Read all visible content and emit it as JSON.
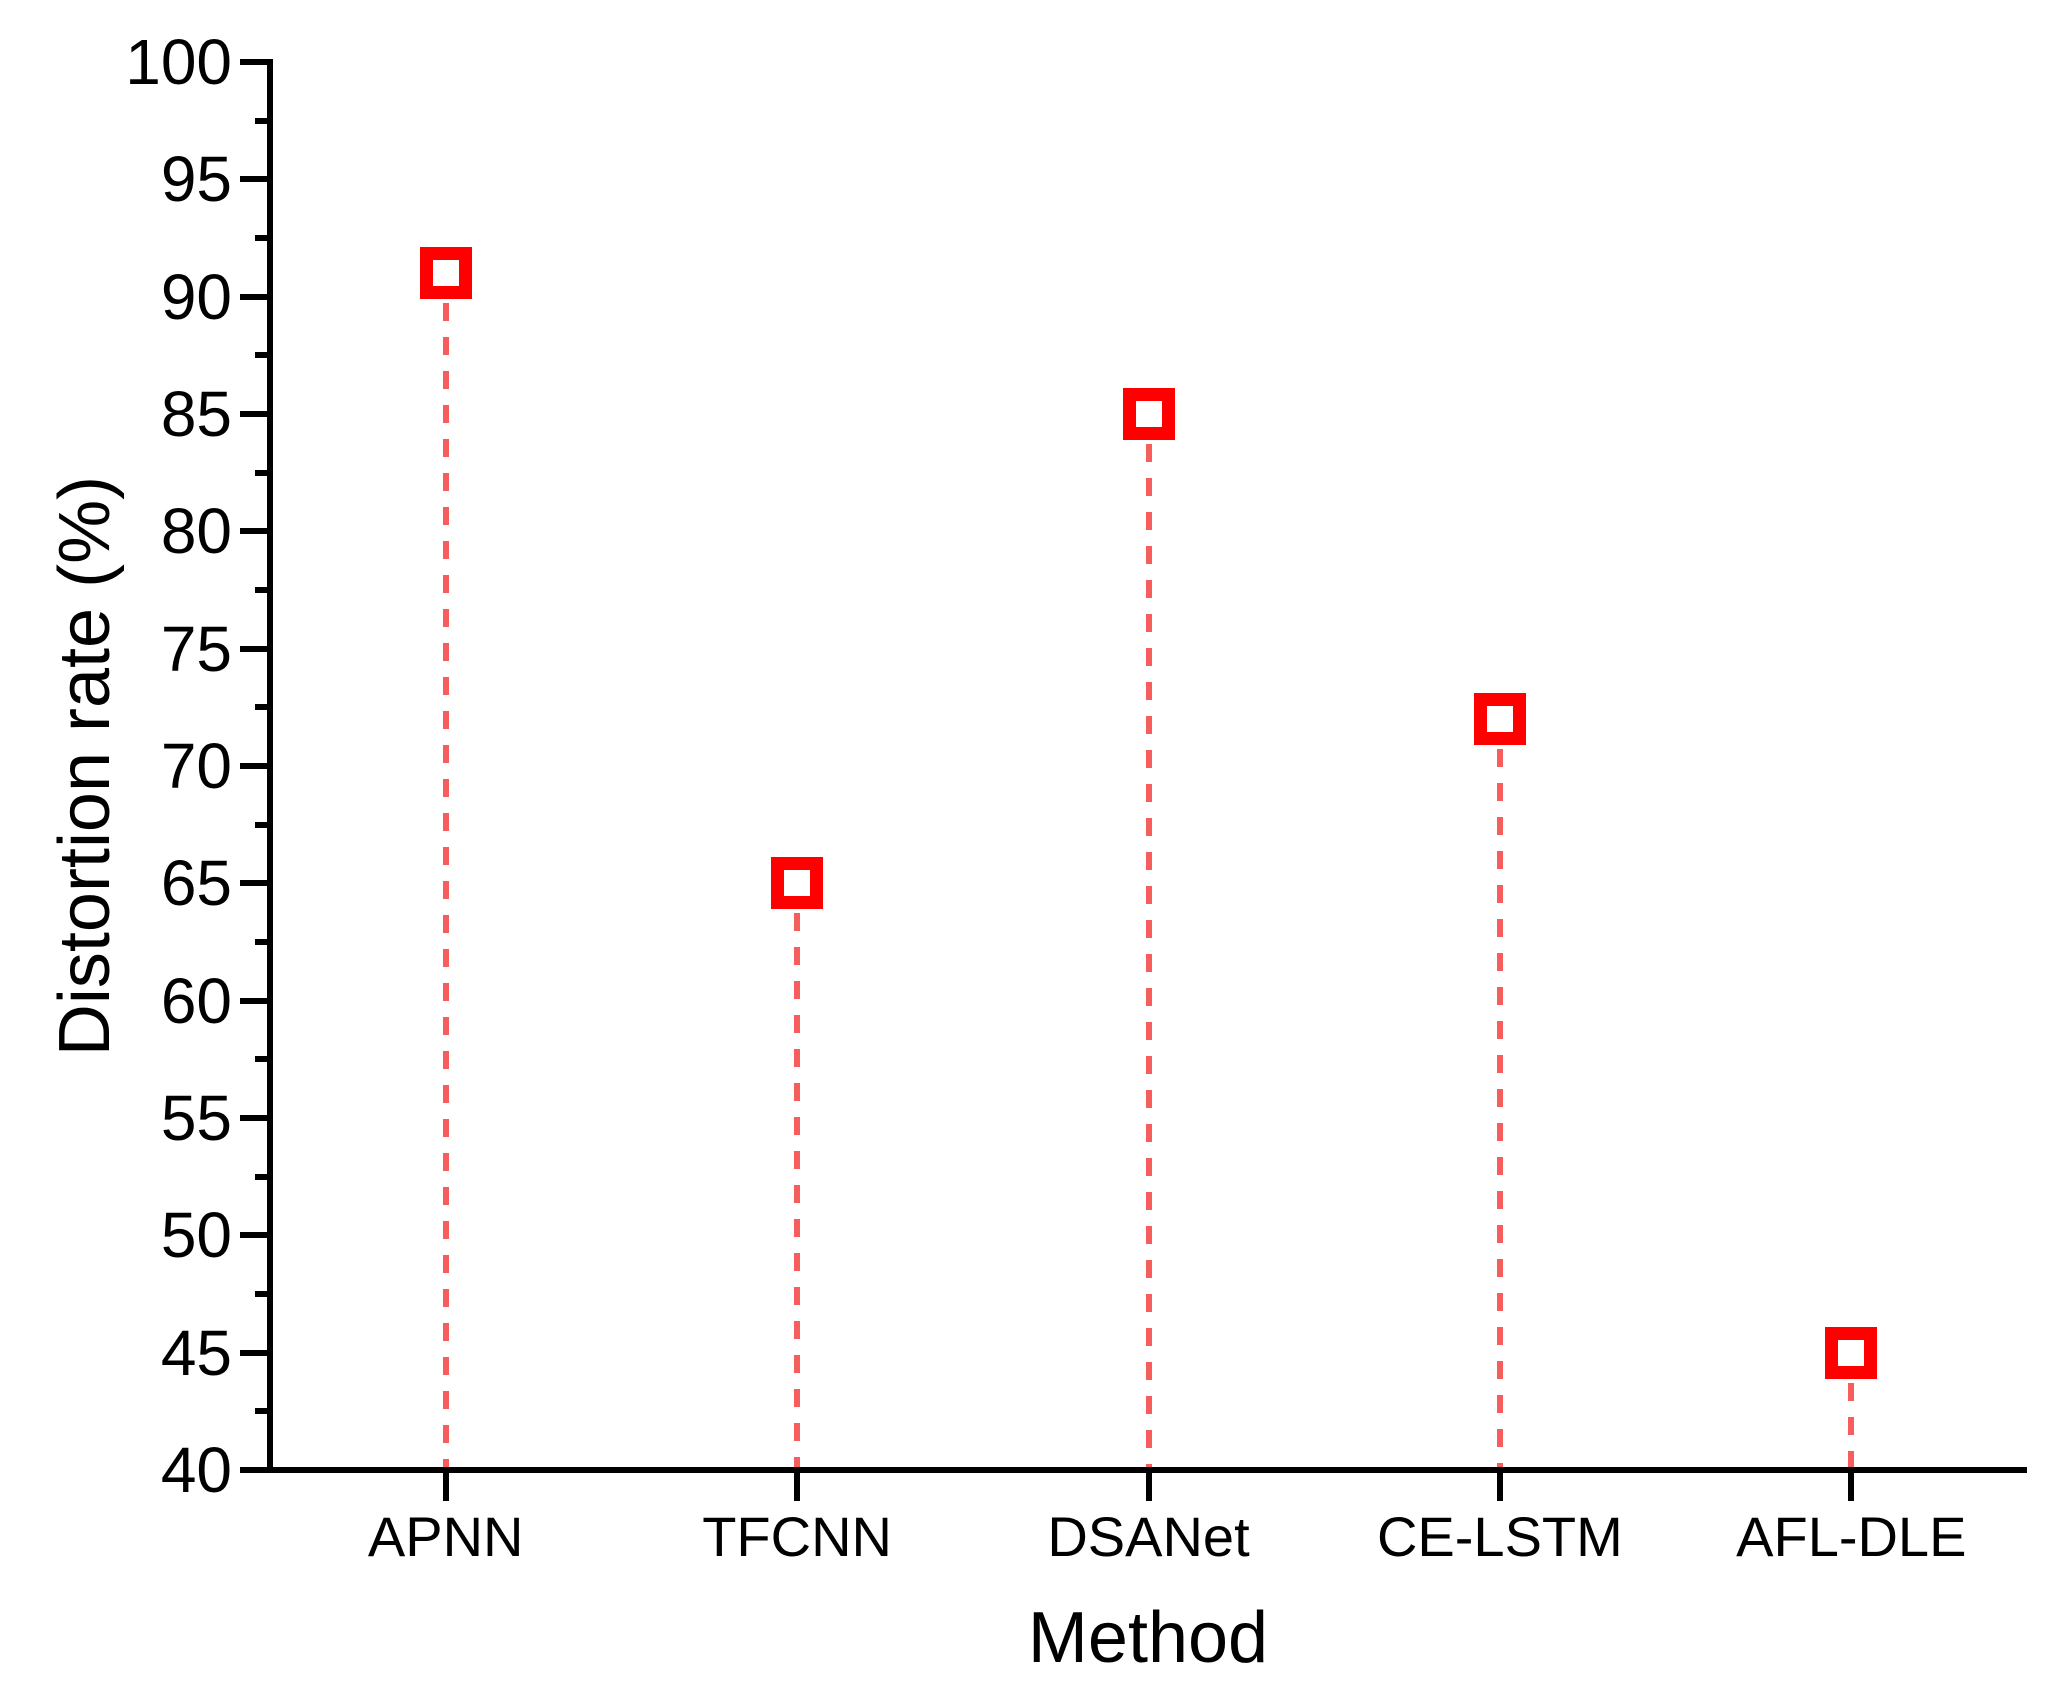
{
  "chart_data": {
    "type": "scatter",
    "subtype": "stem-plot-open-square-markers",
    "title": "",
    "xlabel": "Method",
    "ylabel": "Distortion rate (%)",
    "categories": [
      "APNN",
      "TFCNN",
      "DSANet",
      "CE-LSTM",
      "AFL-DLE"
    ],
    "series": [
      {
        "name": "Distortion rate",
        "values": [
          91,
          65,
          85,
          72,
          45
        ]
      }
    ],
    "ylim": [
      40,
      100
    ],
    "y_major_ticks": [
      40,
      45,
      50,
      55,
      60,
      65,
      70,
      75,
      80,
      85,
      90,
      95,
      100
    ],
    "y_minor_step": 2.5,
    "grid": false,
    "legend": "none",
    "marker_color": "#FF0000",
    "stem_color": "#F75D5D",
    "axis_color": "#000000",
    "background_color": "#FFFFFF"
  }
}
